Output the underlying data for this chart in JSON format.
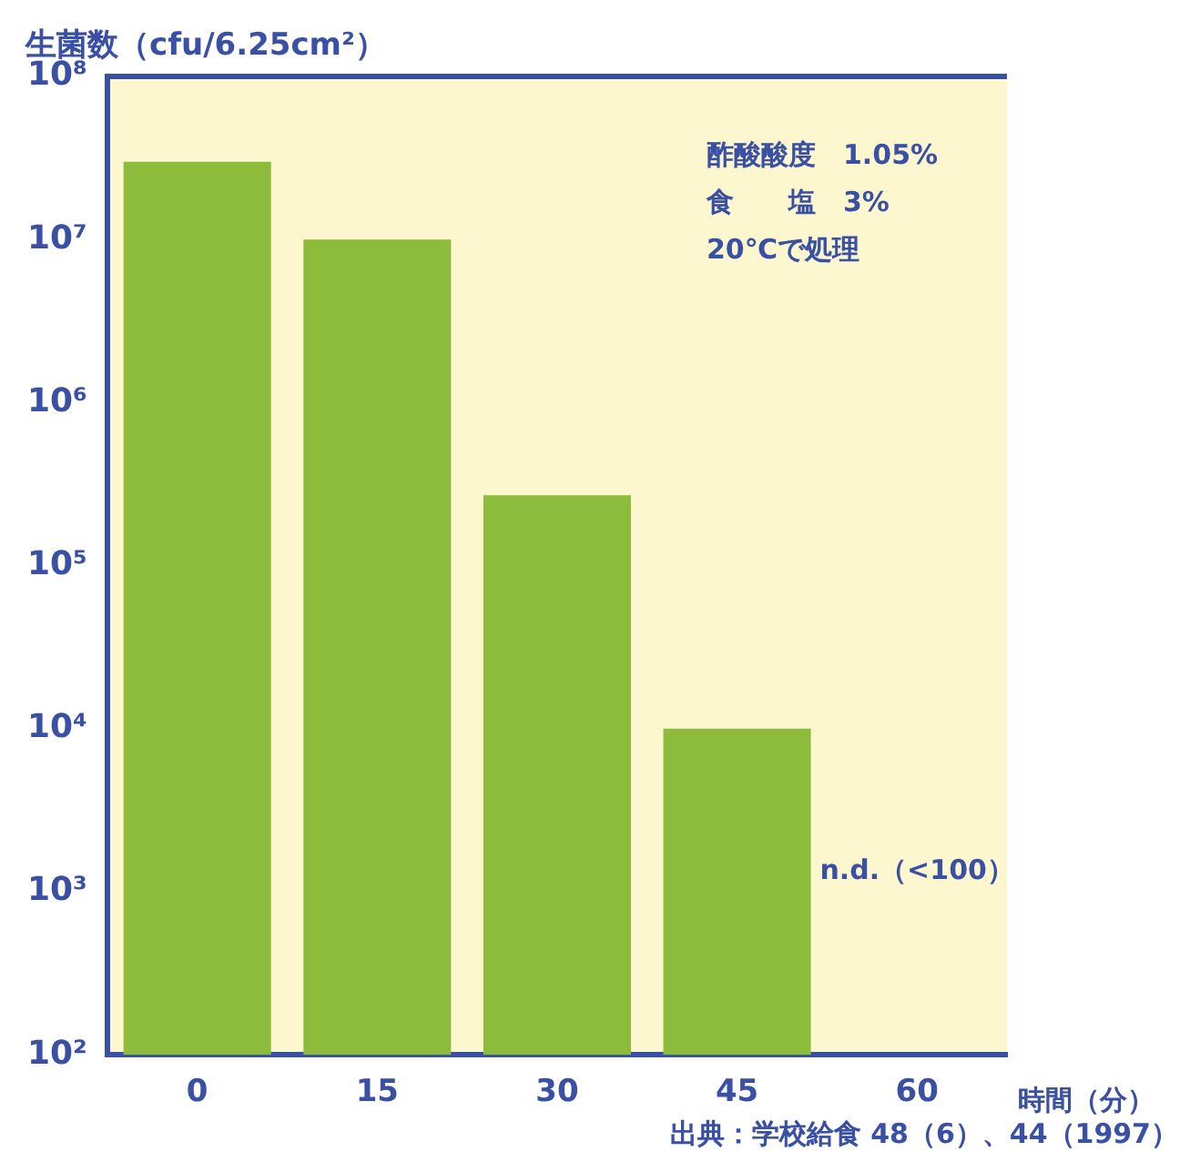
{
  "chart_data": {
    "type": "bar",
    "ylabel": "生菌数（cfu/6.25cm²）",
    "xlabel": "時間（分）",
    "categories": [
      "0",
      "15",
      "30",
      "45",
      "60"
    ],
    "series": [
      {
        "color": "#8dbb3c",
        "values": [
          30000000,
          10000000,
          270000,
          10000,
          null
        ]
      }
    ],
    "log": "y",
    "ylim": [
      100,
      100000000
    ],
    "yticks": [
      {
        "value": 100,
        "label": "10²"
      },
      {
        "value": 1000,
        "label": "10³"
      },
      {
        "value": 10000,
        "label": "10⁴"
      },
      {
        "value": 100000,
        "label": "10⁵"
      },
      {
        "value": 1000000,
        "label": "10⁶"
      },
      {
        "value": 10000000,
        "label": "10⁷"
      },
      {
        "value": 100000000,
        "label": "10⁸"
      }
    ],
    "grid": false,
    "legend": false,
    "annotations": [
      "酢酸酸度　1.05%",
      "食　　塩　3%",
      "20℃で処理",
      "n.d.（<100）",
      "出典：学校給食 48（6）、44（1997）"
    ]
  }
}
